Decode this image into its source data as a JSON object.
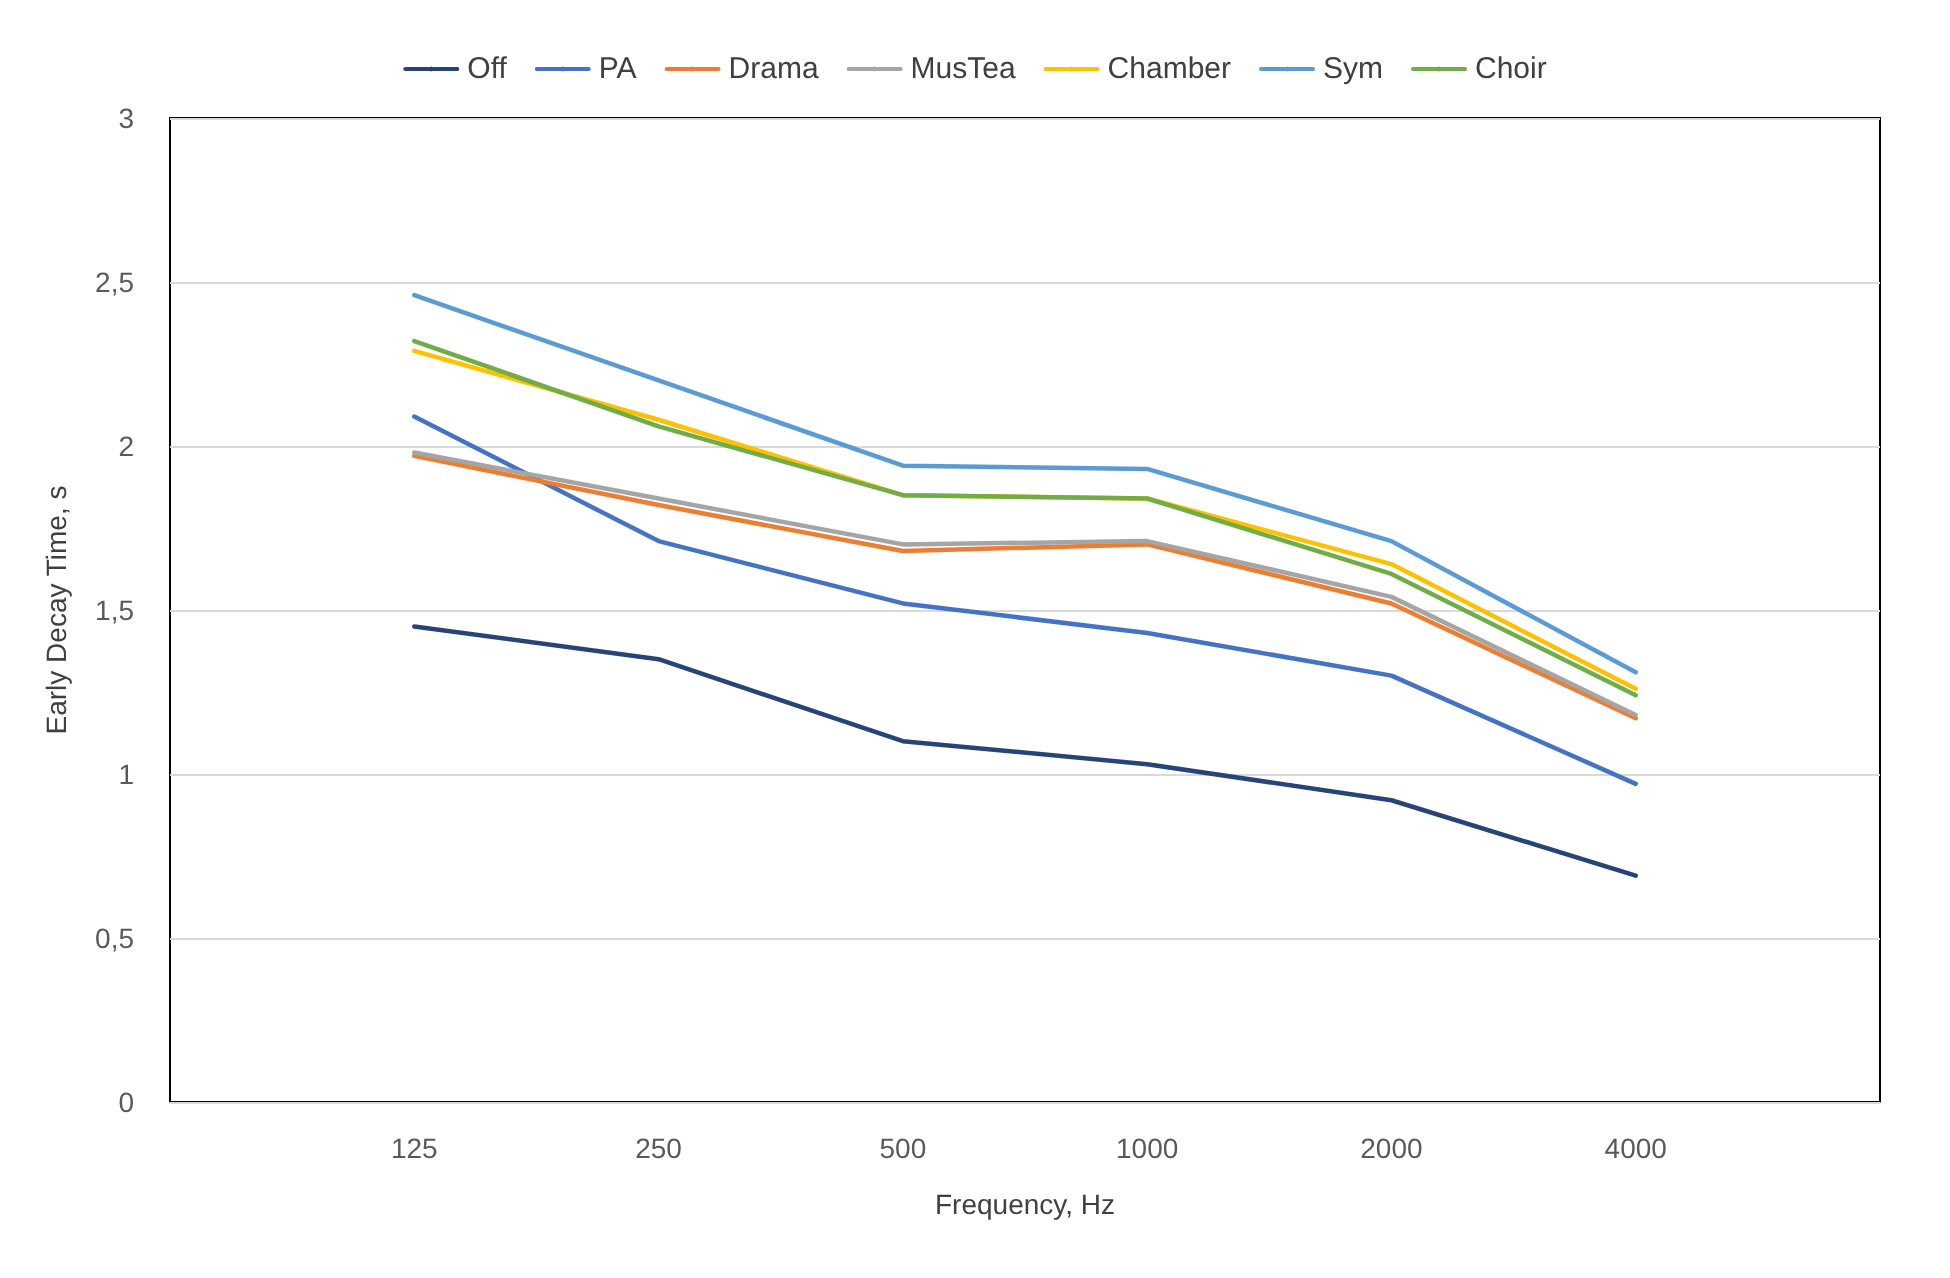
{
  "chart_data": {
    "type": "line",
    "xlabel": "Frequency, Hz",
    "ylabel": "Early Decay Time, s",
    "categories": [
      "125",
      "250",
      "500",
      "1000",
      "2000",
      "4000"
    ],
    "series": [
      {
        "name": "Off",
        "color": "#264478",
        "values": [
          1.45,
          1.35,
          1.1,
          1.03,
          0.92,
          0.69
        ]
      },
      {
        "name": "PA",
        "color": "#4472c4",
        "values": [
          2.09,
          1.71,
          1.52,
          1.43,
          1.3,
          0.97
        ]
      },
      {
        "name": "Drama",
        "color": "#ed7d31",
        "values": [
          1.97,
          1.82,
          1.68,
          1.7,
          1.52,
          1.17
        ]
      },
      {
        "name": "MusTea",
        "color": "#a5a5a5",
        "values": [
          1.98,
          1.84,
          1.7,
          1.71,
          1.54,
          1.18
        ]
      },
      {
        "name": "Chamber",
        "color": "#ffc000",
        "values": [
          2.29,
          2.08,
          1.85,
          1.84,
          1.64,
          1.26
        ]
      },
      {
        "name": "Sym",
        "color": "#5b9bd5",
        "values": [
          2.46,
          2.2,
          1.94,
          1.93,
          1.71,
          1.31
        ]
      },
      {
        "name": "Choir",
        "color": "#70ad47",
        "values": [
          2.32,
          2.06,
          1.85,
          1.84,
          1.61,
          1.24
        ]
      }
    ],
    "ylim": [
      0,
      3
    ],
    "yticks": [
      0,
      {
        "value": 0.5,
        "label": "0,5"
      },
      1,
      {
        "value": 1.5,
        "label": "1,5"
      },
      2,
      {
        "value": 2.5,
        "label": "2,5"
      },
      3
    ],
    "grid": "y",
    "legend": "top",
    "marker": "none",
    "line_style": "solid"
  }
}
